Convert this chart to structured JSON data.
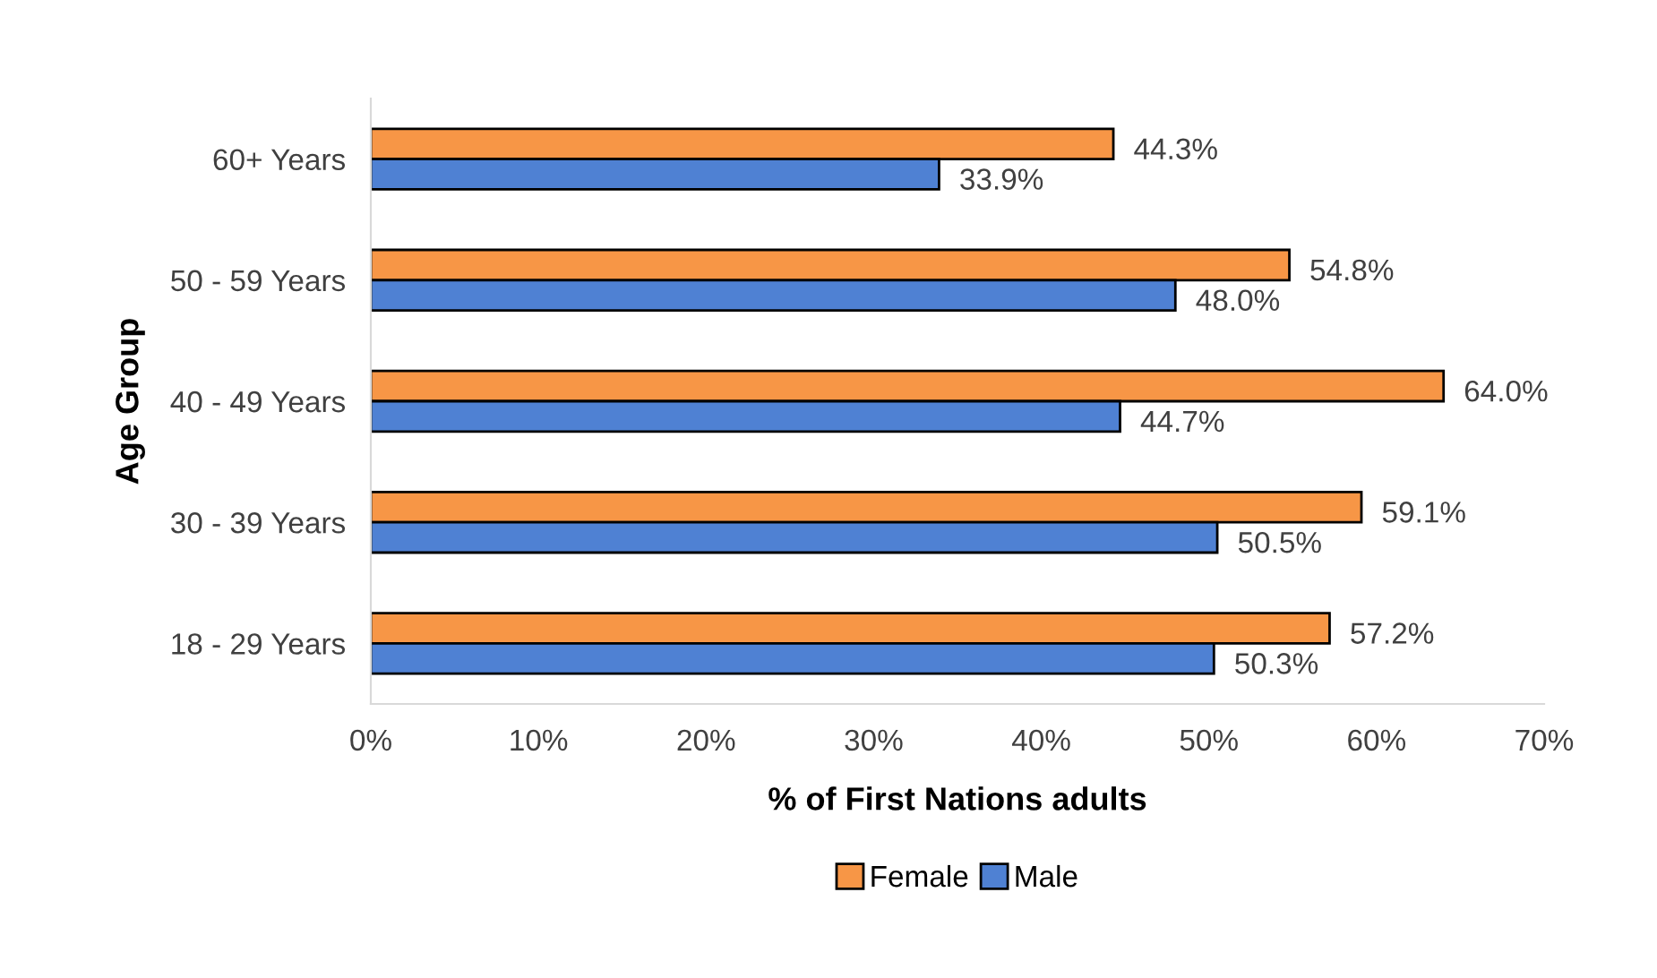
{
  "chart_data": {
    "type": "bar",
    "orientation": "horizontal",
    "xlabel": "% of First Nations adults",
    "ylabel": "Age Group",
    "categories": [
      "60+ Years",
      "50 - 59 Years",
      "40 - 49 Years",
      "30 - 39 Years",
      "18 - 29 Years"
    ],
    "series": [
      {
        "name": "Female",
        "color": "#f79646",
        "values": [
          44.3,
          54.8,
          64.0,
          59.1,
          57.2
        ],
        "value_labels": [
          "44.3%",
          "54.8%",
          "64.0%",
          "59.1%",
          "57.2%"
        ]
      },
      {
        "name": "Male",
        "color": "#4f81d3",
        "values": [
          33.9,
          48.0,
          44.7,
          50.5,
          50.3
        ],
        "value_labels": [
          "33.9%",
          "48.0%",
          "44.7%",
          "50.5%",
          "50.3%"
        ]
      }
    ],
    "xlim": [
      0,
      70
    ],
    "xticks": [
      {
        "value": 0,
        "label": "0%"
      },
      {
        "value": 10,
        "label": "10%"
      },
      {
        "value": 20,
        "label": "20%"
      },
      {
        "value": 30,
        "label": "30%"
      },
      {
        "value": 40,
        "label": "40%"
      },
      {
        "value": 50,
        "label": "50%"
      },
      {
        "value": 60,
        "label": "60%"
      },
      {
        "value": 70,
        "label": "70%"
      }
    ],
    "grid": false,
    "legend": "bottom"
  }
}
